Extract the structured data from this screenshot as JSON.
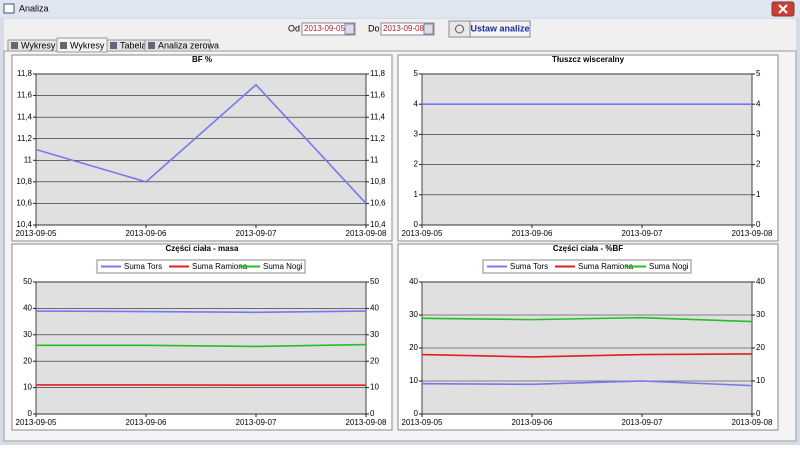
{
  "window": {
    "title": "Analiza",
    "from_label": "Od",
    "from_date": "2013-09-05",
    "to_label": "Do",
    "to_date": "2013-09-08",
    "apply_button": "Ustaw analize",
    "tabs": [
      "Wykresy I",
      "Wykresy II",
      "Tabela",
      "Analiza zerowa"
    ]
  },
  "chart_data": [
    {
      "type": "line",
      "title": "BF %",
      "categories": [
        "2013-09-05",
        "2013-09-06",
        "2013-09-07",
        "2013-09-08"
      ],
      "values": [
        11.1,
        10.8,
        11.7,
        10.6
      ],
      "color": "#7878ee",
      "ylim": [
        10.4,
        11.8
      ],
      "yticks": [
        {
          "value": 10.4,
          "label": "10,4"
        },
        {
          "value": 10.6,
          "label": "10,6"
        },
        {
          "value": 10.8,
          "label": "10,8"
        },
        11,
        {
          "value": 11.2,
          "label": "11,2"
        },
        {
          "value": 11.4,
          "label": "11,4"
        },
        {
          "value": 11.6,
          "label": "11,6"
        },
        {
          "value": 11.8,
          "label": "11,8"
        }
      ],
      "grid": true
    },
    {
      "type": "line",
      "title": "Tłuszcz wisceralny",
      "categories": [
        "2013-09-05",
        "2013-09-06",
        "2013-09-07",
        "2013-09-08"
      ],
      "values": [
        4,
        4,
        4,
        4
      ],
      "color": "#7878ee",
      "ylim": [
        0,
        5
      ],
      "yticks": [
        0,
        1,
        2,
        3,
        4,
        5
      ],
      "grid": true
    },
    {
      "type": "line",
      "title": "Części ciała - masa",
      "categories": [
        "2013-09-05",
        "2013-09-06",
        "2013-09-07",
        "2013-09-08"
      ],
      "series": [
        {
          "name": "Suma Tors",
          "color": "#7878ee",
          "values": [
            39,
            38.8,
            38.5,
            39
          ]
        },
        {
          "name": "Suma Ramiona",
          "color": "#e02020",
          "values": [
            11,
            11,
            10.9,
            10.9
          ]
        },
        {
          "name": "Suma Nogi",
          "color": "#22c022",
          "values": [
            26,
            26,
            25.6,
            26.3
          ]
        }
      ],
      "ylim": [
        0,
        50
      ],
      "yticks": [
        0,
        10,
        20,
        30,
        40,
        50
      ],
      "grid": true,
      "legend": "top"
    },
    {
      "type": "line",
      "title": "Części ciała - %BF",
      "categories": [
        "2013-09-05",
        "2013-09-06",
        "2013-09-07",
        "2013-09-08"
      ],
      "series": [
        {
          "name": "Suma Tors",
          "color": "#7878ee",
          "values": [
            9.2,
            9,
            10,
            8.6
          ]
        },
        {
          "name": "Suma Ramiona",
          "color": "#e02020",
          "values": [
            18,
            17.3,
            18,
            18.2
          ]
        },
        {
          "name": "Suma Nogi",
          "color": "#22c022",
          "values": [
            29,
            28.6,
            29.2,
            28
          ]
        }
      ],
      "ylim": [
        0,
        40
      ],
      "yticks": [
        0,
        10,
        20,
        30,
        40
      ],
      "grid": true,
      "legend": "top"
    }
  ]
}
